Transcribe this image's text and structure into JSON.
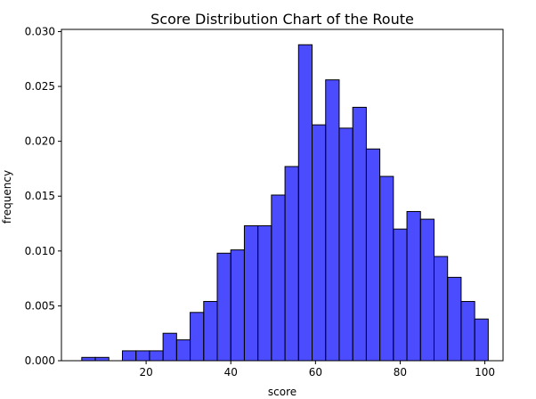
{
  "chart_data": {
    "type": "bar",
    "title": "Score Distribution Chart of the Route",
    "xlabel": "score",
    "ylabel": "frequency",
    "xlim": [
      0,
      104.3
    ],
    "ylim": [
      0,
      0.0302
    ],
    "x_ticks": [
      20,
      40,
      60,
      80,
      100
    ],
    "x_tick_labels": [
      "20",
      "40",
      "60",
      "80",
      "100"
    ],
    "y_ticks": [
      0,
      0.005,
      0.01,
      0.015,
      0.02,
      0.025,
      0.03
    ],
    "y_tick_labels": [
      "0.000",
      "0.005",
      "0.010",
      "0.015",
      "0.020",
      "0.025",
      "0.030"
    ],
    "bin_width": 3.2,
    "bins": [
      {
        "start": 4.8,
        "value": 0.0003
      },
      {
        "start": 8.0,
        "value": 0.0003
      },
      {
        "start": 11.2,
        "value": 0.0
      },
      {
        "start": 14.4,
        "value": 0.0009
      },
      {
        "start": 17.6,
        "value": 0.0009
      },
      {
        "start": 20.8,
        "value": 0.0009
      },
      {
        "start": 24.0,
        "value": 0.0025
      },
      {
        "start": 27.2,
        "value": 0.0019
      },
      {
        "start": 30.4,
        "value": 0.0044
      },
      {
        "start": 33.6,
        "value": 0.0054
      },
      {
        "start": 36.8,
        "value": 0.0098
      },
      {
        "start": 40.0,
        "value": 0.0101
      },
      {
        "start": 43.2,
        "value": 0.0123
      },
      {
        "start": 46.4,
        "value": 0.0123
      },
      {
        "start": 49.6,
        "value": 0.0151
      },
      {
        "start": 52.8,
        "value": 0.0177
      },
      {
        "start": 56.0,
        "value": 0.0288
      },
      {
        "start": 59.2,
        "value": 0.0215
      },
      {
        "start": 62.4,
        "value": 0.0256
      },
      {
        "start": 65.6,
        "value": 0.0212
      },
      {
        "start": 68.8,
        "value": 0.0231
      },
      {
        "start": 72.0,
        "value": 0.0193
      },
      {
        "start": 75.2,
        "value": 0.0168
      },
      {
        "start": 78.4,
        "value": 0.012
      },
      {
        "start": 81.6,
        "value": 0.0136
      },
      {
        "start": 84.8,
        "value": 0.0129
      },
      {
        "start": 88.0,
        "value": 0.0095
      },
      {
        "start": 91.2,
        "value": 0.0076
      },
      {
        "start": 94.4,
        "value": 0.0054
      },
      {
        "start": 97.6,
        "value": 0.0038
      }
    ],
    "bar_color": "#0000ff",
    "bar_alpha": 0.7,
    "edge_color": "#000000",
    "grid": false
  }
}
